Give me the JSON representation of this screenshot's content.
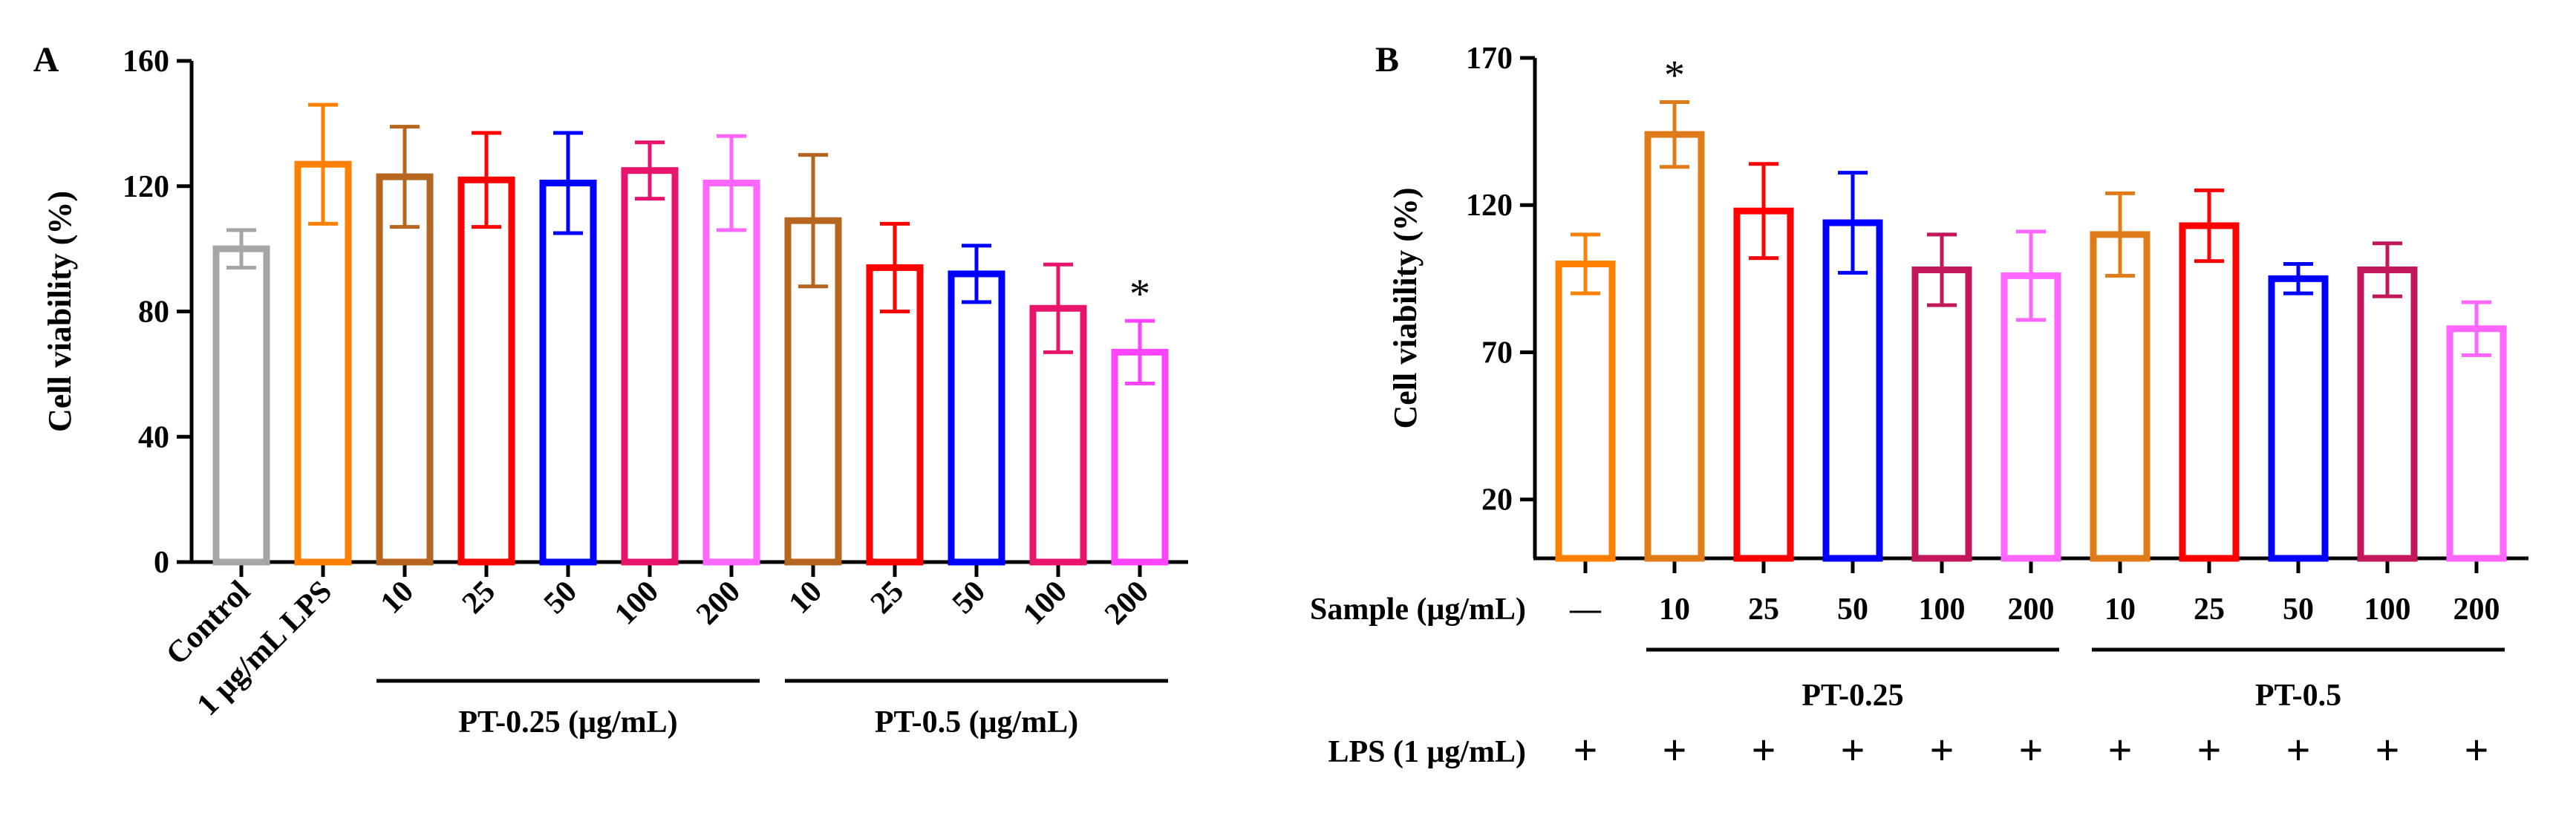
{
  "chart_data": [
    {
      "type": "bar",
      "panel_label": "A",
      "ylabel": "Cell viability (%)",
      "ylim": [
        0,
        160
      ],
      "yticks": [
        0,
        40,
        80,
        120,
        160
      ],
      "categories": [
        "Control",
        "1 μg/mL LPS",
        "10",
        "25",
        "50",
        "100",
        "200",
        "10",
        "25",
        "50",
        "100",
        "200"
      ],
      "values": [
        100,
        127,
        123,
        122,
        121,
        125,
        121,
        109,
        94,
        92,
        81,
        67
      ],
      "errors": [
        6,
        19,
        16,
        15,
        16,
        9,
        15,
        21,
        14,
        9,
        14,
        10
      ],
      "colors": [
        "#a6a6a6",
        "#ff7f00",
        "#b5651d",
        "#ff0000",
        "#0000ff",
        "#e8146c",
        "#ff66ff",
        "#b5651d",
        "#ff0000",
        "#0000ff",
        "#e8146c",
        "#ff44ff"
      ],
      "significance": [
        "",
        "",
        "",
        "",
        "",
        "",
        "",
        "",
        "",
        "",
        "",
        "*"
      ],
      "groups": [
        {
          "label": "PT-0.25 (μg/mL)",
          "from": 2,
          "to": 6
        },
        {
          "label": "PT-0.5 (μg/mL)",
          "from": 7,
          "to": 11
        }
      ]
    },
    {
      "type": "bar",
      "panel_label": "B",
      "ylabel": "Cell viability (%)",
      "ylim": [
        0,
        170
      ],
      "yticks": [
        20,
        70,
        120,
        170
      ],
      "sample_row_label": "Sample (μg/mL)",
      "categories": [
        "—",
        "10",
        "25",
        "50",
        "100",
        "200",
        "10",
        "25",
        "50",
        "100",
        "200"
      ],
      "values": [
        100,
        144,
        118,
        114,
        98,
        96,
        110,
        113,
        95,
        98,
        78
      ],
      "errors": [
        10,
        11,
        16,
        17,
        12,
        15,
        14,
        12,
        5,
        9,
        9
      ],
      "colors": [
        "#ff7f00",
        "#e07b1a",
        "#ff0000",
        "#0000ff",
        "#c2185b",
        "#ff66ff",
        "#e07b1a",
        "#ff0000",
        "#0000ff",
        "#c2185b",
        "#ff66ff"
      ],
      "significance": [
        "",
        "*",
        "",
        "",
        "",
        "",
        "",
        "",
        "",
        "",
        ""
      ],
      "groups": [
        {
          "label": "PT-0.25",
          "from": 1,
          "to": 5
        },
        {
          "label": "PT-0.5",
          "from": 6,
          "to": 10
        }
      ],
      "lps_row_label": "LPS (1 μg/mL)",
      "lps_marks": [
        "+",
        "+",
        "+",
        "+",
        "+",
        "+",
        "+",
        "+",
        "+",
        "+",
        "+"
      ]
    }
  ]
}
